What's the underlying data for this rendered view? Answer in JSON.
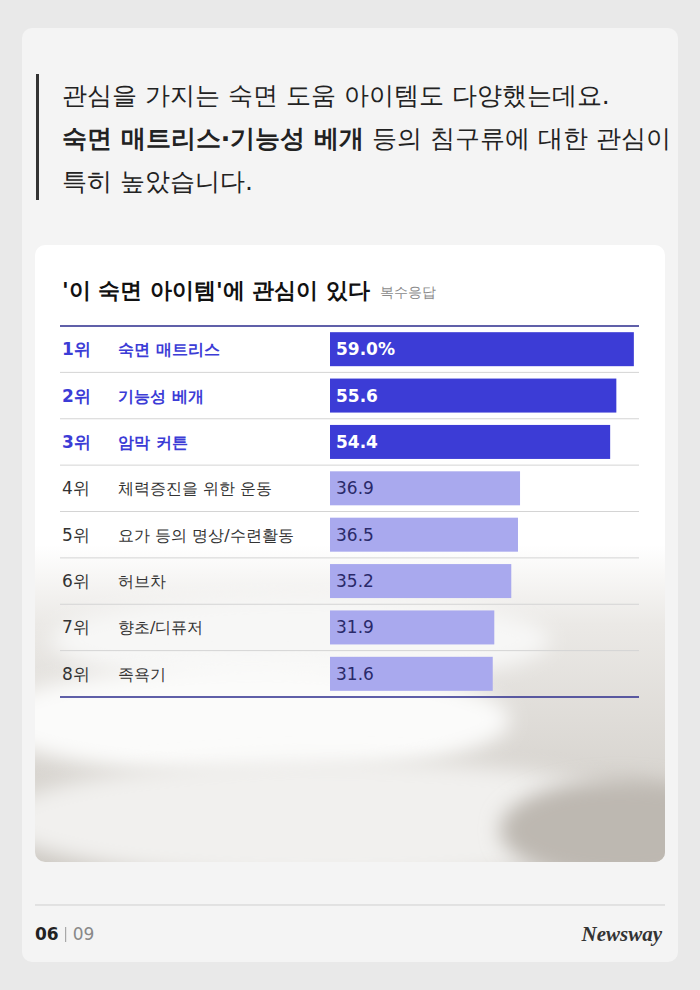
{
  "header": {
    "lines": [
      [
        {
          "text": "관심을 가지는 숙면 도움 아이템도 다양했는데요.",
          "emphasis": false
        }
      ],
      [
        {
          "text": "숙면 매트리스·기능성 베개",
          "emphasis": true
        },
        {
          "text": " 등의 침구류에 대한 관심이",
          "emphasis": false
        }
      ],
      [
        {
          "text": "특히 높았습니다.",
          "emphasis": false
        }
      ]
    ]
  },
  "chart_data": {
    "type": "bar",
    "orientation": "horizontal",
    "title": "'이 숙면 아이템'에 관심이 있다",
    "subtitle": "복수응답",
    "ranks": [
      "1위",
      "2위",
      "3위",
      "4위",
      "5위",
      "6위",
      "7위",
      "8위"
    ],
    "categories": [
      "숙면 매트리스",
      "기능성 베개",
      "암막 커튼",
      "체력증진을 위한 운동",
      "요가 등의 명상/수련활동",
      "허브차",
      "향초/디퓨저",
      "족욕기"
    ],
    "values": [
      59.0,
      55.6,
      54.4,
      36.9,
      36.5,
      35.2,
      31.9,
      31.6
    ],
    "value_labels": [
      "59.0%",
      "55.6",
      "54.4",
      "36.9",
      "36.5",
      "35.2",
      "31.9",
      "31.6"
    ],
    "colors": [
      "#3c3cd6",
      "#3c3cd6",
      "#3c3cd6",
      "#a9a9ee",
      "#a9a9ee",
      "#a9a9ee",
      "#a9a9ee",
      "#a9a9ee"
    ],
    "xlim": [
      0,
      60
    ],
    "data_labels": true,
    "tick_labels": false
  },
  "footer": {
    "page": "06",
    "total": "09",
    "brand": "Newsway"
  }
}
